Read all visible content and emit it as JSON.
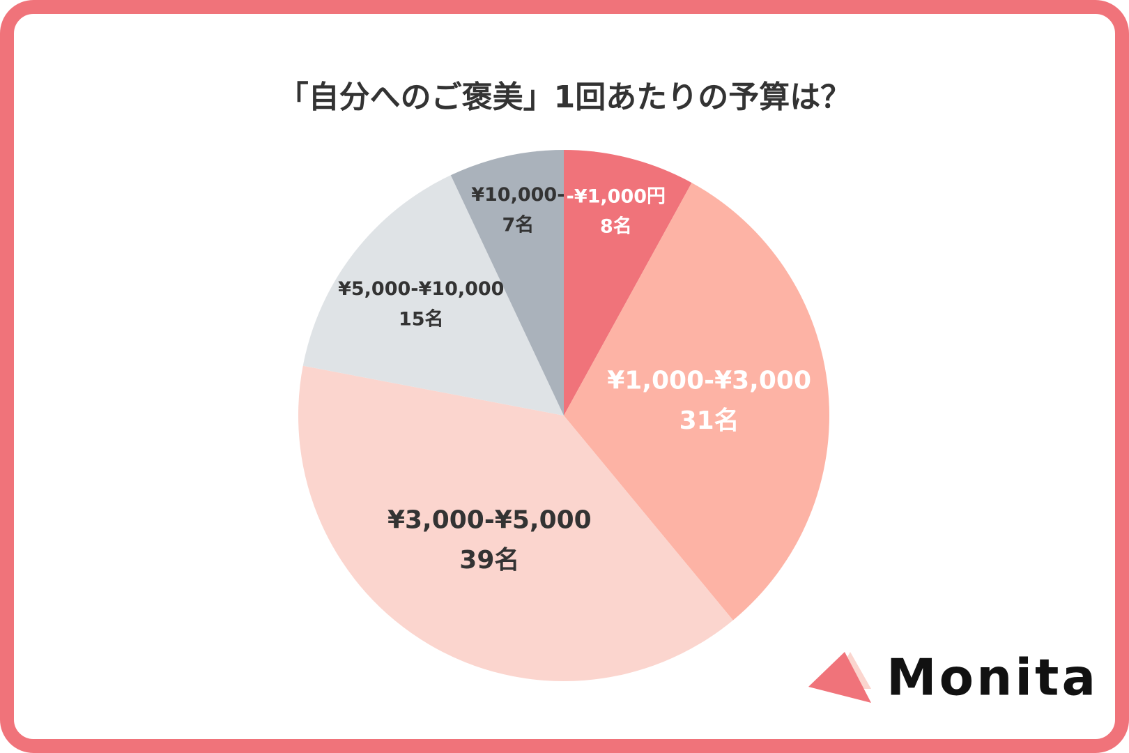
{
  "chart_data": {
    "type": "pie",
    "title": "「自分へのご褒美」1回あたりの予算は？",
    "categories": [
      "-¥1,000円",
      "¥1,000-¥3,000",
      "¥3,000-¥5,000",
      "¥5,000-¥10,000",
      "¥10,000-"
    ],
    "values": [
      8,
      31,
      39,
      15,
      7
    ],
    "value_labels": [
      "8名",
      "31名",
      "39名",
      "15名",
      "7名"
    ],
    "colors": [
      "#f0737a",
      "#fdb3a5",
      "#fbd5ce",
      "#dfe3e6",
      "#aab2bb"
    ]
  },
  "brand": "Monita"
}
